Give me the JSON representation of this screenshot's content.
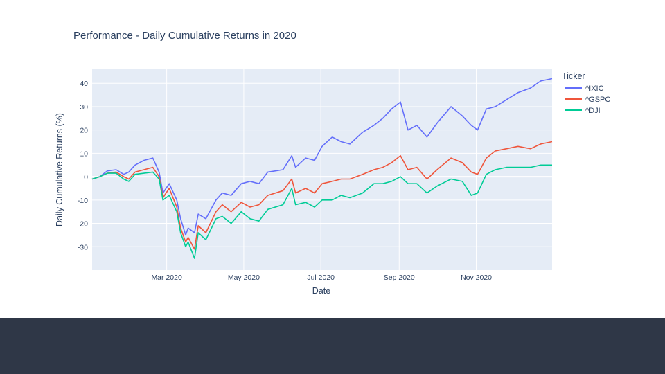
{
  "colors": {
    "plot_bg": "#e5ecf6",
    "grid": "#ffffff",
    "text": "#2a3f5f",
    "footer": "#2f3747"
  },
  "chart_data": {
    "type": "line",
    "title": "Performance - Daily Cumulative Returns in 2020",
    "xlabel": "Date",
    "ylabel": "Daily Cumulative Returns (%)",
    "xlim": [
      "2020-01-02",
      "2020-12-31"
    ],
    "ylim": [
      -40,
      46
    ],
    "y_ticks": [
      -30,
      -20,
      -10,
      0,
      10,
      20,
      30,
      40
    ],
    "x_ticks": [
      {
        "date": "2020-03-01",
        "label": "Mar 2020"
      },
      {
        "date": "2020-05-01",
        "label": "May 2020"
      },
      {
        "date": "2020-07-01",
        "label": "Jul 2020"
      },
      {
        "date": "2020-09-01",
        "label": "Sep 2020"
      },
      {
        "date": "2020-11-01",
        "label": "Nov 2020"
      }
    ],
    "grid": true,
    "legend": {
      "title": "Ticker",
      "placement": "top-right, outside plot"
    },
    "series": [
      {
        "name": "^IXIC",
        "color": "#636efa",
        "points": [
          [
            "2020-01-02",
            -1
          ],
          [
            "2020-01-08",
            0
          ],
          [
            "2020-01-14",
            2.5
          ],
          [
            "2020-01-21",
            3
          ],
          [
            "2020-01-27",
            1
          ],
          [
            "2020-01-31",
            2
          ],
          [
            "2020-02-05",
            5
          ],
          [
            "2020-02-12",
            7
          ],
          [
            "2020-02-19",
            8
          ],
          [
            "2020-02-24",
            2
          ],
          [
            "2020-02-27",
            -7
          ],
          [
            "2020-03-03",
            -3
          ],
          [
            "2020-03-09",
            -10
          ],
          [
            "2020-03-12",
            -18
          ],
          [
            "2020-03-16",
            -25
          ],
          [
            "2020-03-18",
            -22
          ],
          [
            "2020-03-23",
            -24
          ],
          [
            "2020-03-26",
            -16
          ],
          [
            "2020-04-01",
            -18
          ],
          [
            "2020-04-09",
            -10
          ],
          [
            "2020-04-14",
            -7
          ],
          [
            "2020-04-21",
            -8
          ],
          [
            "2020-04-29",
            -3
          ],
          [
            "2020-05-06",
            -2
          ],
          [
            "2020-05-13",
            -3
          ],
          [
            "2020-05-20",
            2
          ],
          [
            "2020-06-01",
            3
          ],
          [
            "2020-06-08",
            9
          ],
          [
            "2020-06-11",
            4
          ],
          [
            "2020-06-19",
            8
          ],
          [
            "2020-06-26",
            7
          ],
          [
            "2020-07-02",
            13
          ],
          [
            "2020-07-10",
            17
          ],
          [
            "2020-07-17",
            15
          ],
          [
            "2020-07-24",
            14
          ],
          [
            "2020-08-03",
            19
          ],
          [
            "2020-08-12",
            22
          ],
          [
            "2020-08-19",
            25
          ],
          [
            "2020-08-26",
            29
          ],
          [
            "2020-09-02",
            32
          ],
          [
            "2020-09-08",
            20
          ],
          [
            "2020-09-15",
            22
          ],
          [
            "2020-09-23",
            17
          ],
          [
            "2020-10-01",
            23
          ],
          [
            "2020-10-12",
            30
          ],
          [
            "2020-10-21",
            26
          ],
          [
            "2020-10-28",
            22
          ],
          [
            "2020-11-02",
            20
          ],
          [
            "2020-11-09",
            29
          ],
          [
            "2020-11-16",
            30
          ],
          [
            "2020-11-25",
            33
          ],
          [
            "2020-12-04",
            36
          ],
          [
            "2020-12-14",
            38
          ],
          [
            "2020-12-22",
            41
          ],
          [
            "2020-12-31",
            42
          ]
        ]
      },
      {
        "name": "^GSPC",
        "color": "#ef553b",
        "points": [
          [
            "2020-01-02",
            -1
          ],
          [
            "2020-01-08",
            0
          ],
          [
            "2020-01-14",
            1.5
          ],
          [
            "2020-01-21",
            2
          ],
          [
            "2020-01-27",
            0
          ],
          [
            "2020-01-31",
            -1
          ],
          [
            "2020-02-05",
            2
          ],
          [
            "2020-02-12",
            3
          ],
          [
            "2020-02-19",
            4
          ],
          [
            "2020-02-24",
            0
          ],
          [
            "2020-02-27",
            -9
          ],
          [
            "2020-03-03",
            -5
          ],
          [
            "2020-03-09",
            -13
          ],
          [
            "2020-03-12",
            -22
          ],
          [
            "2020-03-16",
            -28
          ],
          [
            "2020-03-18",
            -26
          ],
          [
            "2020-03-23",
            -31
          ],
          [
            "2020-03-26",
            -21
          ],
          [
            "2020-04-01",
            -24
          ],
          [
            "2020-04-09",
            -15
          ],
          [
            "2020-04-14",
            -12
          ],
          [
            "2020-04-21",
            -15
          ],
          [
            "2020-04-29",
            -11
          ],
          [
            "2020-05-06",
            -13
          ],
          [
            "2020-05-13",
            -12
          ],
          [
            "2020-05-20",
            -8
          ],
          [
            "2020-06-01",
            -6
          ],
          [
            "2020-06-08",
            -1
          ],
          [
            "2020-06-11",
            -7
          ],
          [
            "2020-06-19",
            -5
          ],
          [
            "2020-06-26",
            -7
          ],
          [
            "2020-07-02",
            -3
          ],
          [
            "2020-07-10",
            -2
          ],
          [
            "2020-07-17",
            -1
          ],
          [
            "2020-07-24",
            -1
          ],
          [
            "2020-08-03",
            1
          ],
          [
            "2020-08-12",
            3
          ],
          [
            "2020-08-19",
            4
          ],
          [
            "2020-08-26",
            6
          ],
          [
            "2020-09-02",
            9
          ],
          [
            "2020-09-08",
            3
          ],
          [
            "2020-09-15",
            4
          ],
          [
            "2020-09-23",
            -1
          ],
          [
            "2020-10-01",
            3
          ],
          [
            "2020-10-12",
            8
          ],
          [
            "2020-10-21",
            6
          ],
          [
            "2020-10-28",
            2
          ],
          [
            "2020-11-02",
            1
          ],
          [
            "2020-11-09",
            8
          ],
          [
            "2020-11-16",
            11
          ],
          [
            "2020-11-25",
            12
          ],
          [
            "2020-12-04",
            13
          ],
          [
            "2020-12-14",
            12
          ],
          [
            "2020-12-22",
            14
          ],
          [
            "2020-12-31",
            15
          ]
        ]
      },
      {
        "name": "^DJI",
        "color": "#00cc96",
        "points": [
          [
            "2020-01-02",
            -1
          ],
          [
            "2020-01-08",
            0
          ],
          [
            "2020-01-14",
            1.5
          ],
          [
            "2020-01-21",
            1.5
          ],
          [
            "2020-01-27",
            -1
          ],
          [
            "2020-01-31",
            -2
          ],
          [
            "2020-02-05",
            1
          ],
          [
            "2020-02-12",
            1.5
          ],
          [
            "2020-02-19",
            2
          ],
          [
            "2020-02-24",
            -1
          ],
          [
            "2020-02-27",
            -10
          ],
          [
            "2020-03-03",
            -8
          ],
          [
            "2020-03-09",
            -15
          ],
          [
            "2020-03-12",
            -24
          ],
          [
            "2020-03-16",
            -30
          ],
          [
            "2020-03-18",
            -28
          ],
          [
            "2020-03-23",
            -35
          ],
          [
            "2020-03-26",
            -24
          ],
          [
            "2020-04-01",
            -27
          ],
          [
            "2020-04-09",
            -18
          ],
          [
            "2020-04-14",
            -17
          ],
          [
            "2020-04-21",
            -20
          ],
          [
            "2020-04-29",
            -15
          ],
          [
            "2020-05-06",
            -18
          ],
          [
            "2020-05-13",
            -19
          ],
          [
            "2020-05-20",
            -14
          ],
          [
            "2020-06-01",
            -12
          ],
          [
            "2020-06-08",
            -5
          ],
          [
            "2020-06-11",
            -12
          ],
          [
            "2020-06-19",
            -11
          ],
          [
            "2020-06-26",
            -13
          ],
          [
            "2020-07-02",
            -10
          ],
          [
            "2020-07-10",
            -10
          ],
          [
            "2020-07-17",
            -8
          ],
          [
            "2020-07-24",
            -9
          ],
          [
            "2020-08-03",
            -7
          ],
          [
            "2020-08-12",
            -3
          ],
          [
            "2020-08-19",
            -3
          ],
          [
            "2020-08-26",
            -2
          ],
          [
            "2020-09-02",
            0
          ],
          [
            "2020-09-08",
            -3
          ],
          [
            "2020-09-15",
            -3
          ],
          [
            "2020-09-23",
            -7
          ],
          [
            "2020-10-01",
            -4
          ],
          [
            "2020-10-12",
            -1
          ],
          [
            "2020-10-21",
            -2
          ],
          [
            "2020-10-28",
            -8
          ],
          [
            "2020-11-02",
            -7
          ],
          [
            "2020-11-09",
            1
          ],
          [
            "2020-11-16",
            3
          ],
          [
            "2020-11-25",
            4
          ],
          [
            "2020-12-04",
            4
          ],
          [
            "2020-12-14",
            4
          ],
          [
            "2020-12-22",
            5
          ],
          [
            "2020-12-31",
            5
          ]
        ]
      }
    ]
  }
}
